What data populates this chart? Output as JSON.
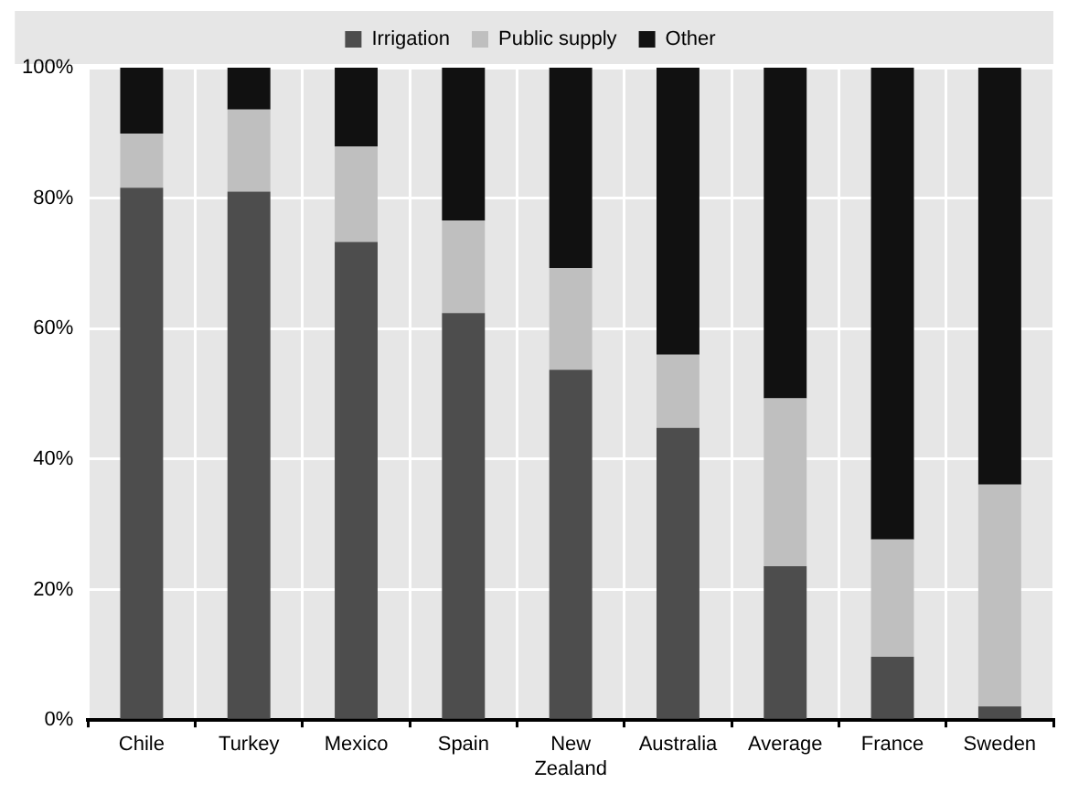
{
  "chart_data": {
    "type": "bar",
    "stacked": true,
    "categories": [
      "Chile",
      "Turkey",
      "Mexico",
      "Spain",
      "New Zealand",
      "Australia",
      "Average",
      "France",
      "Sweden"
    ],
    "series": [
      {
        "name": "Irrigation",
        "color": "#4d4d4d",
        "values": [
          81.6,
          81.0,
          73.3,
          62.4,
          53.7,
          44.8,
          23.6,
          9.7,
          2.1
        ]
      },
      {
        "name": "Public supply",
        "color": "#bfbfbf",
        "values": [
          8.3,
          12.6,
          14.6,
          14.2,
          15.6,
          11.2,
          25.7,
          18.0,
          34.0
        ]
      },
      {
        "name": "Other",
        "color": "#111111",
        "values": [
          10.1,
          6.4,
          12.1,
          23.4,
          30.7,
          44.0,
          50.7,
          72.3,
          63.9
        ]
      }
    ],
    "ylim": [
      0,
      100
    ],
    "yticks": [
      {
        "value": 0,
        "label": "0%"
      },
      {
        "value": 20,
        "label": "20%"
      },
      {
        "value": 40,
        "label": "40%"
      },
      {
        "value": 60,
        "label": "60%"
      },
      {
        "value": 80,
        "label": "80%"
      },
      {
        "value": 100,
        "label": "100%"
      }
    ],
    "grid": true,
    "legend": "top"
  }
}
